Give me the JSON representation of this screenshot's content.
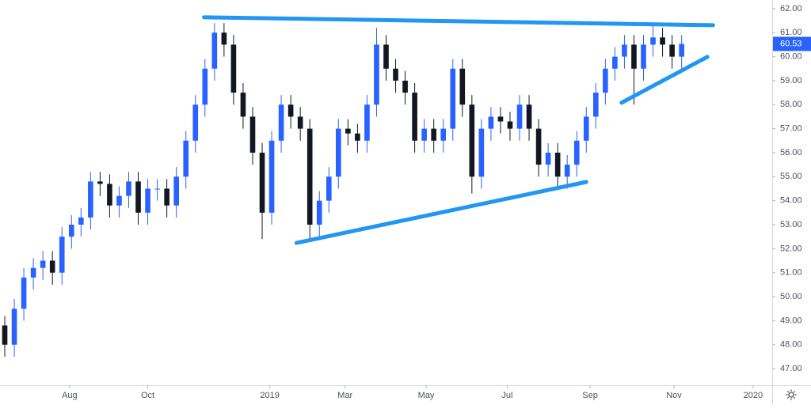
{
  "chart_data": {
    "type": "candlestick",
    "x": [
      0,
      1,
      2,
      3,
      4,
      5,
      6,
      7,
      8,
      9,
      10,
      11,
      12,
      13,
      14,
      15,
      16,
      17,
      18,
      19,
      20,
      21,
      22,
      23,
      24,
      25,
      26,
      27,
      28,
      29,
      30,
      31,
      32,
      33,
      34,
      35,
      36,
      37,
      38,
      39,
      40,
      41,
      42,
      43,
      44,
      45,
      46,
      47,
      48,
      49,
      50,
      51,
      52,
      53,
      54,
      55,
      56,
      57,
      58,
      59,
      60,
      61,
      62,
      63,
      64,
      65,
      66,
      67,
      68,
      69,
      70,
      71
    ],
    "open": [
      48.8,
      48.0,
      49.5,
      50.8,
      51.2,
      51.5,
      51.0,
      52.5,
      53.0,
      53.3,
      54.8,
      54.7,
      53.8,
      54.2,
      54.8,
      53.5,
      54.5,
      54.5,
      53.8,
      55.0,
      56.5,
      58.0,
      59.5,
      61.0,
      60.5,
      58.5,
      57.5,
      56.0,
      53.5,
      56.5,
      58.0,
      57.5,
      57.0,
      53.0,
      54.0,
      55.0,
      57.0,
      56.8,
      56.5,
      58.0,
      60.5,
      59.5,
      59.0,
      58.5,
      56.5,
      57.0,
      56.5,
      57.0,
      59.5,
      58.0,
      55.0,
      57.0,
      57.5,
      57.3,
      57.0,
      58.0,
      57.0,
      55.5,
      56.0,
      55.0,
      55.5,
      56.5,
      57.5,
      58.5,
      59.5,
      60.0,
      60.5,
      59.5,
      60.5,
      60.8,
      60.5,
      60.0
    ],
    "high": [
      49.2,
      49.9,
      51.2,
      51.6,
      51.9,
      51.9,
      52.9,
      53.4,
      53.7,
      55.2,
      55.2,
      55.1,
      54.6,
      55.2,
      55.2,
      54.9,
      54.9,
      54.9,
      55.4,
      56.9,
      58.4,
      59.9,
      61.4,
      61.4,
      60.9,
      58.9,
      57.9,
      56.4,
      56.9,
      58.4,
      58.4,
      57.9,
      57.4,
      54.4,
      55.4,
      57.4,
      57.4,
      57.2,
      58.4,
      61.2,
      60.9,
      59.9,
      59.4,
      58.9,
      57.4,
      57.4,
      57.4,
      59.9,
      59.9,
      58.4,
      57.4,
      57.9,
      57.9,
      57.7,
      58.4,
      58.4,
      57.4,
      56.4,
      56.4,
      55.9,
      56.9,
      57.9,
      58.9,
      59.9,
      60.4,
      60.9,
      60.9,
      60.9,
      61.3,
      61.2,
      60.9,
      60.9
    ],
    "low": [
      47.5,
      47.5,
      49.0,
      50.3,
      50.7,
      50.5,
      50.5,
      52.0,
      52.5,
      52.8,
      54.2,
      53.3,
      53.3,
      53.7,
      53.0,
      53.0,
      54.0,
      53.3,
      53.3,
      54.5,
      56.0,
      57.5,
      59.0,
      60.0,
      58.0,
      57.0,
      55.5,
      52.4,
      53.0,
      56.0,
      57.0,
      56.5,
      52.3,
      52.5,
      53.5,
      54.5,
      56.3,
      56.0,
      56.0,
      57.5,
      59.0,
      58.5,
      58.0,
      56.0,
      56.0,
      56.0,
      56.0,
      56.5,
      57.5,
      54.3,
      54.5,
      56.5,
      56.8,
      56.5,
      56.5,
      56.5,
      55.0,
      55.0,
      54.5,
      54.5,
      55.0,
      56.0,
      57.0,
      58.0,
      59.0,
      59.5,
      58.0,
      59.0,
      60.0,
      60.0,
      59.5,
      59.5
    ],
    "close": [
      48.0,
      49.5,
      50.8,
      51.2,
      51.5,
      51.0,
      52.5,
      53.0,
      53.3,
      54.8,
      54.7,
      53.8,
      54.2,
      54.8,
      53.5,
      54.5,
      54.5,
      53.8,
      55.0,
      56.5,
      58.0,
      59.5,
      61.0,
      60.5,
      58.5,
      57.5,
      56.0,
      53.5,
      56.5,
      58.0,
      57.5,
      57.0,
      53.0,
      54.0,
      55.0,
      57.0,
      56.8,
      56.5,
      58.0,
      60.5,
      59.5,
      59.0,
      58.5,
      56.5,
      57.0,
      56.5,
      57.0,
      59.5,
      58.0,
      55.0,
      57.0,
      57.5,
      57.3,
      57.0,
      58.0,
      57.0,
      55.5,
      56.0,
      55.0,
      55.5,
      56.5,
      57.5,
      58.5,
      59.5,
      60.0,
      60.5,
      59.5,
      60.5,
      60.8,
      60.5,
      60.0,
      60.53
    ],
    "up_color": "#2962ff",
    "down_color": "#131722",
    "xlim": [
      -0.5,
      80.5
    ],
    "xticks": [
      {
        "value": 6.8,
        "label": "Aug"
      },
      {
        "value": 15.0,
        "label": "Oct"
      },
      {
        "value": 27.8,
        "label": "2019"
      },
      {
        "value": 35.7,
        "label": "Mar"
      },
      {
        "value": 44.2,
        "label": "May"
      },
      {
        "value": 52.7,
        "label": "Jul"
      },
      {
        "value": 61.4,
        "label": "Sep"
      },
      {
        "value": 70.2,
        "label": "Nov"
      },
      {
        "value": 78.5,
        "label": "2020"
      }
    ],
    "ylim": [
      46.31,
      62.36
    ],
    "yticks": [
      {
        "value": 47,
        "label": "47.00"
      },
      {
        "value": 48,
        "label": "48.00"
      },
      {
        "value": 49,
        "label": "49.00"
      },
      {
        "value": 50,
        "label": "50.00"
      },
      {
        "value": 51,
        "label": "51.00"
      },
      {
        "value": 52,
        "label": "52.00"
      },
      {
        "value": 53,
        "label": "53.00"
      },
      {
        "value": 54,
        "label": "54.00"
      },
      {
        "value": 55,
        "label": "55.00"
      },
      {
        "value": 56,
        "label": "56.00"
      },
      {
        "value": 57,
        "label": "57.00"
      },
      {
        "value": 58,
        "label": "58.00"
      },
      {
        "value": 59,
        "label": "59.00"
      },
      {
        "value": 60,
        "label": "60.00"
      },
      {
        "value": 61,
        "label": "61.00"
      },
      {
        "value": 62,
        "label": "62.00"
      }
    ],
    "trendline_color": "#2196f3",
    "trendlines": [
      {
        "x": [
          20.9,
          74.3
        ],
        "y": [
          61.64,
          61.31
        ]
      },
      {
        "x": [
          30.6,
          61.0
        ],
        "y": [
          52.24,
          54.78
        ]
      },
      {
        "x": [
          64.7,
          73.7
        ],
        "y": [
          58.08,
          59.99
        ]
      }
    ],
    "price_label_color": "#2962ff"
  }
}
